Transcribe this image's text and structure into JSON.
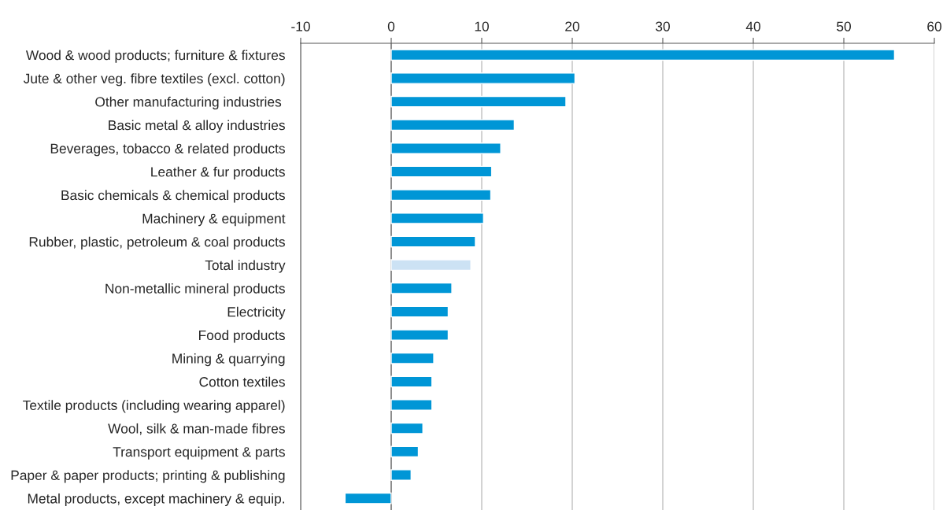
{
  "chart_data": {
    "type": "bar",
    "orientation": "horizontal",
    "categories": [
      "Wood & wood products; furniture & fixtures",
      "Jute & other veg. fibre textiles (excl. cotton)",
      "Other manufacturing industries ",
      "Basic metal & alloy industries",
      "Beverages, tobacco & related products",
      "Leather & fur products",
      "Basic chemicals & chemical products",
      "Machinery & equipment",
      "Rubber, plastic, petroleum & coal products",
      "Total industry",
      "Non-metallic mineral products",
      "Electricity",
      "Food products",
      "Mining & quarrying",
      "Cotton textiles",
      "Textile products (including wearing apparel)",
      "Wool, silk & man-made fibres",
      "Transport equipment & parts",
      "Paper & paper products; printing & publishing",
      "Metal products, except machinery & equip."
    ],
    "values": [
      55.6,
      20.3,
      19.3,
      13.6,
      12.1,
      11.1,
      11.0,
      10.2,
      9.3,
      8.8,
      6.7,
      6.3,
      6.3,
      4.7,
      4.5,
      4.5,
      3.5,
      3.0,
      2.2,
      -5.1
    ],
    "colors": [
      "#0096d6",
      "#0096d6",
      "#0096d6",
      "#0096d6",
      "#0096d6",
      "#0096d6",
      "#0096d6",
      "#0096d6",
      "#0096d6",
      "#cce2f4",
      "#0096d6",
      "#0096d6",
      "#0096d6",
      "#0096d6",
      "#0096d6",
      "#0096d6",
      "#0096d6",
      "#0096d6",
      "#0096d6",
      "#0096d6"
    ],
    "xlim": [
      -10,
      60
    ],
    "xticks": [
      -10,
      0,
      10,
      20,
      30,
      40,
      50,
      60
    ],
    "grid": "x"
  }
}
